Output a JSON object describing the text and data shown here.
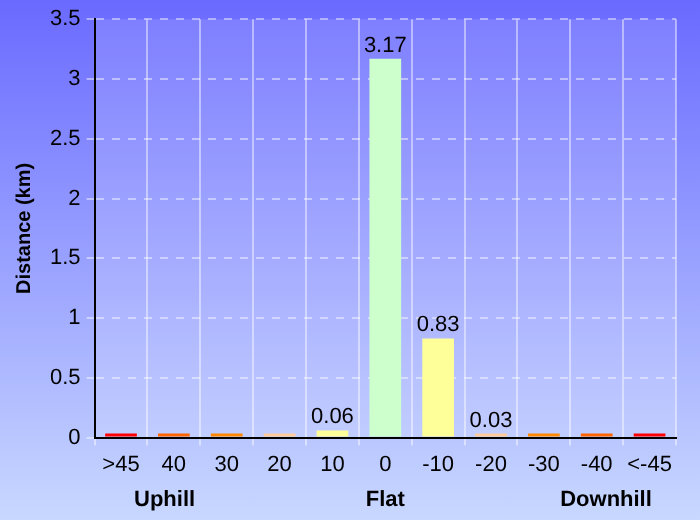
{
  "chart_data": {
    "type": "bar",
    "ylabel": "Distance (km)",
    "categories": [
      ">45",
      "40",
      "30",
      "20",
      "10",
      "0",
      "-10",
      "-20",
      "-30",
      "-40",
      "<-45"
    ],
    "values": [
      0,
      0,
      0,
      0,
      0.06,
      3.17,
      0.83,
      0.03,
      0,
      0,
      0
    ],
    "colors": [
      "#ff0000",
      "#ff6600",
      "#ff8800",
      "#ffcc99",
      "#ffff99",
      "#ccffcc",
      "#ffff99",
      "#ffcc99",
      "#ff8800",
      "#ff6600",
      "#ff0000"
    ],
    "value_labels": [
      null,
      null,
      null,
      null,
      "0.06",
      "3.17",
      "0.83",
      "0.03",
      null,
      null,
      null
    ],
    "ylim": [
      0,
      3.5
    ],
    "yticks": [
      0,
      0.5,
      1,
      1.5,
      2,
      2.5,
      3,
      3.5
    ],
    "grid": true,
    "legend": false,
    "annotations": [
      "Uphill",
      "Flat",
      "Downhill"
    ]
  }
}
